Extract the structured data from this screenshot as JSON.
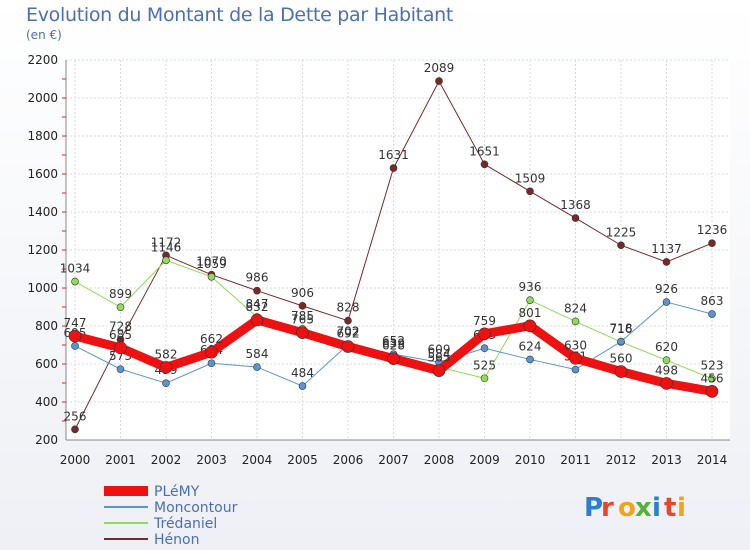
{
  "title": "Evolution du Montant de la Dette par Habitant",
  "subtitle": "(en €)",
  "brand": {
    "letters": [
      "P",
      "r",
      "o",
      "x",
      "i",
      "t",
      "i"
    ],
    "letter_colors": [
      "#2a7fd4",
      "#e8462a",
      "#f2a31b",
      "#57b23a",
      "#2a7fd4",
      "#e8462a",
      "#f2a31b"
    ]
  },
  "chart_data": {
    "type": "line",
    "x": [
      "2000",
      "2001",
      "2002",
      "2003",
      "2004",
      "2005",
      "2006",
      "2007",
      "2008",
      "2009",
      "2010",
      "2011",
      "2012",
      "2013",
      "2014"
    ],
    "ylim": [
      200,
      2200
    ],
    "yticks": [
      200,
      400,
      600,
      800,
      1000,
      1200,
      1400,
      1600,
      1800,
      2000,
      2200
    ],
    "grid": true,
    "legend": "bottom-left",
    "series": [
      {
        "name": "Hénon",
        "color": "#7a2828",
        "width": 1,
        "values": [
          256,
          728,
          1172,
          1070,
          986,
          906,
          828,
          1631,
          2089,
          1651,
          1509,
          1368,
          1225,
          1137,
          1236
        ]
      },
      {
        "name": "Trédaniel",
        "color": "#8edd55",
        "width": 1,
        "values": [
          1034,
          899,
          1146,
          1059,
          847,
          785,
          702,
          639,
          584,
          525,
          936,
          824,
          716,
          620,
          523
        ]
      },
      {
        "name": "Moncontour",
        "color": "#5b95cf",
        "width": 1,
        "values": [
          695,
          573,
          499,
          604,
          584,
          484,
          702,
          652,
          609,
          683,
          624,
          571,
          718,
          926,
          863
        ]
      },
      {
        "name": "PLéMY",
        "color": "#ee1111",
        "width": 9,
        "values": [
          747,
          685,
          582,
          662,
          832,
          765,
          692,
          628,
          565,
          759,
          801,
          630,
          560,
          498,
          456
        ]
      }
    ]
  }
}
